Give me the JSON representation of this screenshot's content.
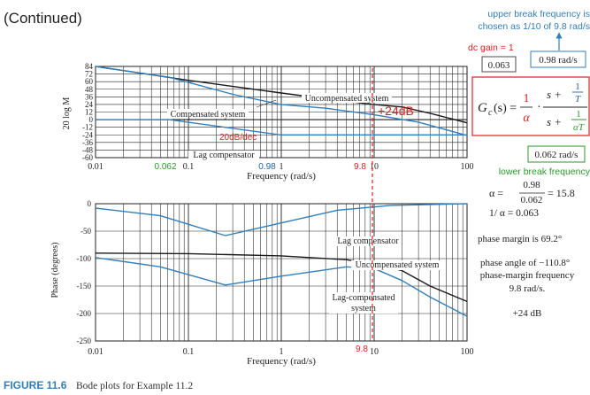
{
  "header": {
    "continued": "(Continued)"
  },
  "figure": {
    "label": "FIGURE 11.6",
    "title": "Bode plots for Example 11.2"
  },
  "colors": {
    "blue": "#2f7fbf",
    "dark": "#1a1a1a",
    "red": "#e02020",
    "green": "#2a9a2a",
    "navy": "#1f5fa8"
  },
  "chart_data": [
    {
      "type": "line",
      "ylabel": "20 log M",
      "xlabel": "Frequency (rad/s)",
      "xscale": "log",
      "xlim": [
        0.01,
        100
      ],
      "ylim": [
        -60,
        84
      ],
      "yticks": [
        84,
        72,
        60,
        48,
        36,
        24,
        12,
        0,
        -12,
        -24,
        -36,
        -48,
        -60
      ],
      "xticks": [
        {
          "v": 0.01,
          "t": "0.01"
        },
        {
          "v": 0.1,
          "t": "0.1"
        },
        {
          "v": 1,
          "t": "1"
        },
        {
          "v": 10,
          "t": "10"
        },
        {
          "v": 100,
          "t": "100"
        }
      ],
      "series": [
        {
          "name": "Uncompensated system",
          "x": [
            0.01,
            0.1,
            1,
            3,
            9.8,
            20,
            40,
            100
          ],
          "y": [
            84,
            62,
            42,
            33,
            24,
            20,
            10,
            -5
          ]
        },
        {
          "name": "Compensated system",
          "x": [
            0.01,
            0.062,
            0.3,
            0.98,
            3,
            9.8,
            30,
            100
          ],
          "y": [
            84,
            67,
            40,
            24,
            18,
            8,
            -4,
            -25
          ]
        },
        {
          "name": "Lag compensator",
          "x": [
            0.01,
            0.062,
            0.98,
            100
          ],
          "y": [
            0,
            0,
            -24,
            -24
          ]
        }
      ],
      "annotations": {
        "uncompensated": "Uncompensated system",
        "compensated": "Compensated system",
        "lag": "Lag compensator",
        "slope": "20dB/dec",
        "gain": "+24dB",
        "f1": "0.062",
        "f2": "0.98",
        "f3": "9.8"
      }
    },
    {
      "type": "line",
      "ylabel": "Phase (degrees)",
      "xlabel": "Frequency (rad/s)",
      "xscale": "log",
      "xlim": [
        0.01,
        100
      ],
      "ylim": [
        -250,
        0
      ],
      "yticks": [
        0,
        -50,
        -100,
        -150,
        -200,
        -250
      ],
      "xticks": [
        {
          "v": 0.01,
          "t": "0.01"
        },
        {
          "v": 0.1,
          "t": "0.1"
        },
        {
          "v": 1,
          "t": "1"
        },
        {
          "v": 10,
          "t": "10"
        },
        {
          "v": 100,
          "t": "100"
        }
      ],
      "series": [
        {
          "name": "Lag compensator",
          "x": [
            0.01,
            0.05,
            0.25,
            1,
            4,
            15,
            100
          ],
          "y": [
            -8,
            -22,
            -58,
            -35,
            -12,
            -3,
            0
          ]
        },
        {
          "name": "Uncompensated system",
          "x": [
            0.01,
            0.1,
            1,
            5,
            10,
            20,
            40,
            100
          ],
          "y": [
            -90,
            -91,
            -95,
            -102,
            -110,
            -122,
            -150,
            -178
          ]
        },
        {
          "name": "Lag-compensated system",
          "x": [
            0.01,
            0.05,
            0.25,
            1,
            5,
            10,
            20,
            40,
            100
          ],
          "y": [
            -98,
            -115,
            -148,
            -132,
            -115,
            -118,
            -140,
            -170,
            -205
          ]
        }
      ],
      "annotations": {
        "lag": "Lag compensator",
        "uncompensated": "Uncompensated system",
        "compensated1": "Lag-compensated",
        "compensated2": "system",
        "f3": "9.8"
      }
    }
  ],
  "notes": {
    "upper_break_line1": "upper break frequency is",
    "upper_break_line2": "chosen as 1/10 of 9.8 rad/s",
    "upper_break_value": "0.98 rad/s",
    "dc_gain": "dc gain = 1",
    "dc_gain_value": "0.063",
    "gc_lhs": "G",
    "gc_sub": "c",
    "gc_arg": "(s) =",
    "gc_one": "1",
    "gc_alpha": "α",
    "gc_dot": "·",
    "gc_s": "s +",
    "gc_T": "T",
    "gc_aT": "αT",
    "lower_break_value": "0.062 rad/s",
    "lower_break_label": "lower break frequency",
    "alpha_lhs": "α =",
    "alpha_num": "0.98",
    "alpha_den": "0.062",
    "alpha_res": "= 15.8",
    "inv_alpha": "1/ α = 0.063",
    "phase_margin": "phase margin is 69.2°",
    "phase_angle": "phase angle of −110.8°",
    "pm_freq1": "phase-margin frequency",
    "pm_freq2": "9.8 rad/s.",
    "gain_note": "+24 dB"
  }
}
